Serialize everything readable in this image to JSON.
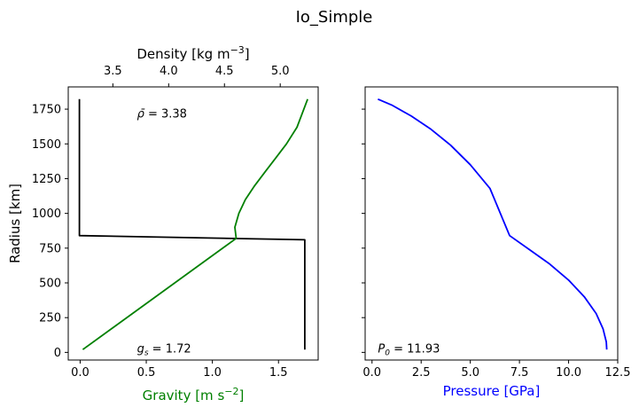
{
  "figure": {
    "title": "Io_Simple"
  },
  "chart_data": [
    {
      "type": "line",
      "panel": "left",
      "ylabel": "Radius [km]",
      "ylim": [
        -55,
        1910
      ],
      "yticks": [
        0,
        250,
        500,
        750,
        1000,
        1250,
        1500,
        1750
      ],
      "ytick_labels": [
        "0",
        "250",
        "500",
        "750",
        "1000",
        "1250",
        "1500",
        "1750"
      ],
      "bottom_axis": {
        "label": "Gravity [m s",
        "label_sup": "−2",
        "label_close": "]",
        "color": "#008000",
        "lim": [
          -0.09,
          1.8
        ],
        "ticks": [
          0,
          0.5,
          1.0,
          1.5
        ],
        "tick_labels": [
          "0.0",
          "0.5",
          "1.0",
          "1.5"
        ]
      },
      "top_axis": {
        "label": "Density [kg m",
        "label_sup": "−3",
        "label_close": "]",
        "color": "#000000",
        "lim": [
          3.1,
          5.34
        ],
        "ticks": [
          3.5,
          4.0,
          4.5,
          5.0
        ],
        "tick_labels": [
          "3.5",
          "4.0",
          "4.5",
          "5.0"
        ]
      },
      "series": [
        {
          "quantity": "density",
          "axis": "top",
          "color": "#000000",
          "x": [
            3.2,
            3.2,
            5.22,
            5.22
          ],
          "y": [
            1822,
            840,
            810,
            20
          ]
        },
        {
          "quantity": "gravity",
          "axis": "bottom",
          "color": "#008000",
          "x": [
            0.02,
            1.18,
            1.17,
            1.2,
            1.25,
            1.32,
            1.4,
            1.48,
            1.56,
            1.64,
            1.72
          ],
          "y": [
            20,
            820,
            900,
            1000,
            1100,
            1200,
            1300,
            1400,
            1500,
            1620,
            1822
          ]
        }
      ],
      "annotations": [
        {
          "prefix": "ρ̄",
          "sub": "",
          "text": " = 3.38",
          "x": 0.43,
          "y": 1690
        },
        {
          "prefix": "g",
          "sub": "s",
          "text": " = 1.72",
          "x": 0.43,
          "y": 0
        }
      ]
    },
    {
      "type": "line",
      "panel": "right",
      "ylim": [
        -55,
        1910
      ],
      "yticks": [
        0,
        250,
        500,
        750,
        1000,
        1250,
        1500,
        1750
      ],
      "xlabel": "Pressure [GPa]",
      "xlabel_color": "#0000ff",
      "xlim": [
        -0.35,
        12.5
      ],
      "xticks": [
        0.0,
        2.5,
        5.0,
        7.5,
        10.0,
        12.5
      ],
      "xtick_labels": [
        "0.0",
        "2.5",
        "5.0",
        "7.5",
        "10.0",
        "12.5"
      ],
      "series": [
        {
          "quantity": "pressure",
          "color": "#0000ff",
          "x": [
            0.3,
            1.0,
            2.0,
            3.0,
            4.0,
            5.0,
            6.0,
            7.0,
            8.0,
            9.0,
            10.0,
            10.8,
            11.4,
            11.75,
            11.92,
            11.94
          ],
          "y": [
            1822,
            1780,
            1700,
            1605,
            1490,
            1350,
            1180,
            840,
            740,
            640,
            520,
            400,
            280,
            170,
            75,
            20
          ]
        }
      ],
      "annotations": [
        {
          "prefix": "P",
          "sub": "0",
          "text": " = 11.93",
          "x": 0.3,
          "y": 0
        }
      ]
    }
  ]
}
